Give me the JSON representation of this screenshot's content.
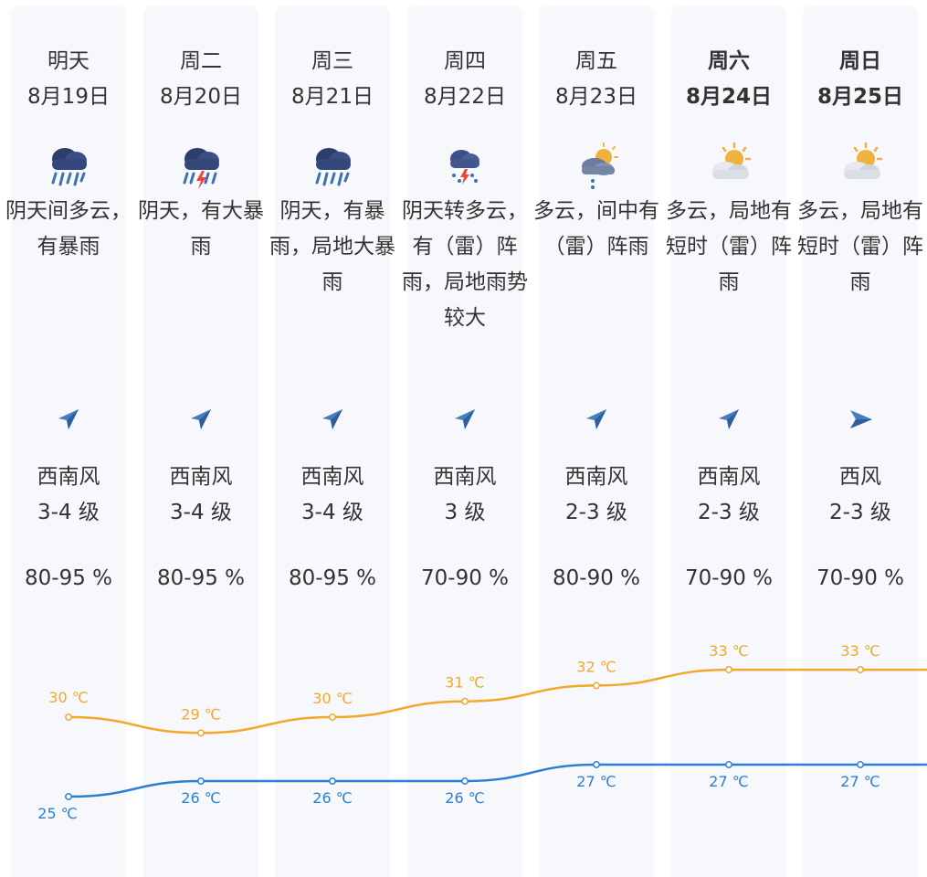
{
  "days": [
    {
      "dow": "明天",
      "date": "8月19日",
      "bold": false,
      "icon": "heavy-rain-icon",
      "desc": "阴天间多云，有暴雨",
      "wind_dir": "西南风",
      "wind_level": "3-4 级",
      "humidity": "80-95 %",
      "high": 30,
      "low": 25,
      "high_label": "30 ℃",
      "low_label": "25 ℃",
      "arrow": "southwest-wind-arrow-icon"
    },
    {
      "dow": "周二",
      "date": "8月20日",
      "bold": false,
      "icon": "thunderstorm-rain-icon",
      "desc": "阴天，有大暴雨",
      "wind_dir": "西南风",
      "wind_level": "3-4 级",
      "humidity": "80-95 %",
      "high": 29,
      "low": 26,
      "high_label": "29 ℃",
      "low_label": "26 ℃",
      "arrow": "southwest-wind-arrow-icon"
    },
    {
      "dow": "周三",
      "date": "8月21日",
      "bold": false,
      "icon": "heavy-rain-icon",
      "desc": "阴天，有暴雨，局地大暴雨",
      "wind_dir": "西南风",
      "wind_level": "3-4 级",
      "humidity": "80-95 %",
      "high": 30,
      "low": 26,
      "high_label": "30 ℃",
      "low_label": "26 ℃",
      "arrow": "southwest-wind-arrow-icon"
    },
    {
      "dow": "周四",
      "date": "8月22日",
      "bold": false,
      "icon": "thunder-shower-icon",
      "desc": "阴天转多云，有（雷）阵雨，局地雨势较大",
      "wind_dir": "西南风",
      "wind_level": "3 级",
      "humidity": "70-90 %",
      "high": 31,
      "low": 26,
      "high_label": "31 ℃",
      "low_label": "26 ℃",
      "arrow": "southwest-wind-arrow-icon"
    },
    {
      "dow": "周五",
      "date": "8月23日",
      "bold": false,
      "icon": "partly-cloudy-shower-icon",
      "desc": "多云，间中有（雷）阵雨",
      "wind_dir": "西南风",
      "wind_level": "2-3 级",
      "humidity": "80-90 %",
      "high": 32,
      "low": 27,
      "high_label": "32 ℃",
      "low_label": "27 ℃",
      "arrow": "southwest-wind-arrow-icon"
    },
    {
      "dow": "周六",
      "date": "8月24日",
      "bold": true,
      "icon": "partly-cloudy-sun-icon",
      "desc": "多云，局地有短时（雷）阵雨",
      "wind_dir": "西南风",
      "wind_level": "2-3 级",
      "humidity": "70-90 %",
      "high": 33,
      "low": 27,
      "high_label": "33 ℃",
      "low_label": "27 ℃",
      "arrow": "southwest-wind-arrow-icon"
    },
    {
      "dow": "周日",
      "date": "8月25日",
      "bold": true,
      "icon": "partly-cloudy-sun-icon",
      "desc": "多云，局地有短时（雷）阵雨",
      "wind_dir": "西风",
      "wind_level": "2-3 级",
      "humidity": "70-90 %",
      "high": 33,
      "low": 27,
      "high_label": "33 ℃",
      "low_label": "27 ℃",
      "arrow": "west-wind-arrow-icon"
    }
  ],
  "colors": {
    "high": "#f0a92a",
    "low": "#2a7fd4",
    "panel": "#f7f8fc",
    "text": "#333333"
  }
}
